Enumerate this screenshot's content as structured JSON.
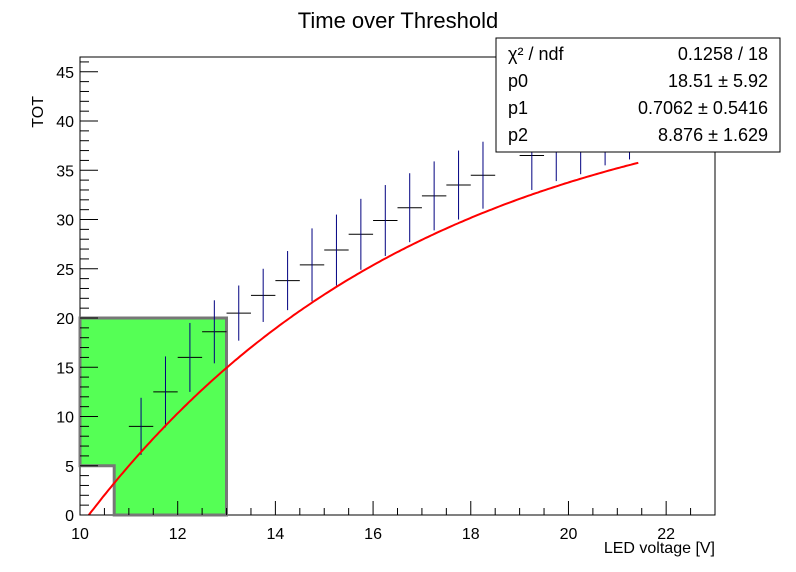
{
  "chart_data": {
    "type": "scatter",
    "title": "Time over Threshold",
    "xlabel": "LED voltage [V]",
    "ylabel": "TOT",
    "xlim": [
      10,
      23
    ],
    "ylim": [
      0,
      46.5
    ],
    "x_ticks": [
      "10",
      "12",
      "14",
      "16",
      "18",
      "20",
      "22"
    ],
    "y_ticks": [
      "0",
      "5",
      "10",
      "15",
      "20",
      "25",
      "30",
      "35",
      "40",
      "45"
    ],
    "series": [
      {
        "x_half_width": 0.25,
        "points": [
          {
            "x": 11.25,
            "y": 9.0,
            "err": 2.9
          },
          {
            "x": 11.75,
            "y": 12.5,
            "err": 3.6
          },
          {
            "x": 12.25,
            "y": 16.0,
            "err": 3.5
          },
          {
            "x": 12.75,
            "y": 18.6,
            "err": 3.2
          },
          {
            "x": 13.25,
            "y": 20.5,
            "err": 2.8
          },
          {
            "x": 13.75,
            "y": 22.3,
            "err": 2.7
          },
          {
            "x": 14.25,
            "y": 23.8,
            "err": 3.0
          },
          {
            "x": 14.75,
            "y": 25.4,
            "err": 3.7
          },
          {
            "x": 15.25,
            "y": 26.9,
            "err": 3.6
          },
          {
            "x": 15.75,
            "y": 28.5,
            "err": 3.6
          },
          {
            "x": 16.25,
            "y": 29.9,
            "err": 3.6
          },
          {
            "x": 16.75,
            "y": 31.2,
            "err": 3.5
          },
          {
            "x": 17.25,
            "y": 32.4,
            "err": 3.5
          },
          {
            "x": 17.75,
            "y": 33.5,
            "err": 3.5
          },
          {
            "x": 18.25,
            "y": 34.5,
            "err": 3.4
          },
          {
            "x": 19.25,
            "y": 36.5,
            "err": 3.5
          },
          {
            "x": 19.75,
            "y": 37.2,
            "err": 3.3
          },
          {
            "x": 20.25,
            "y": 37.8,
            "err": 3.2
          },
          {
            "x": 20.75,
            "y": 38.3,
            "err": 2.8
          },
          {
            "x": 21.25,
            "y": 38.7,
            "err": 2.6
          }
        ]
      }
    ],
    "fit": {
      "function": "p0*(1-exp(-(x-p2)*p1))",
      "color": "#ff0000"
    },
    "shaded_region": {
      "fill": "#55ff55",
      "edge": "#777777",
      "outline": [
        [
          10,
          5
        ],
        [
          10,
          20
        ],
        [
          13,
          20
        ],
        [
          13,
          0
        ],
        [
          10.7,
          0
        ],
        [
          10.7,
          5
        ],
        [
          10,
          5
        ]
      ]
    },
    "stats_box": {
      "rows": [
        {
          "name": "χ² / ndf",
          "value": "0.1258 / 18"
        },
        {
          "name": "p0",
          "value": "18.51 ± 5.92"
        },
        {
          "name": "p1",
          "value": "0.7062 ± 0.5416"
        },
        {
          "name": "p2",
          "value": "8.876 ± 1.629"
        }
      ]
    },
    "colors": {
      "points": "#000080",
      "fit": "#ff0000",
      "region": "#55ff55"
    }
  }
}
